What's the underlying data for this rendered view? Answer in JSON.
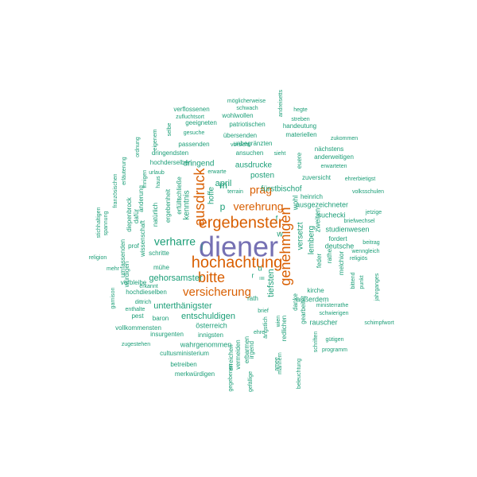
{
  "colors": {
    "teal": "#1b9e77",
    "orange": "#d95f02",
    "purple": "#7570b3"
  },
  "words": [
    {
      "text": "diener",
      "color": "#7570b3"
    },
    {
      "text": "hochachtung",
      "color": "#d95f02"
    },
    {
      "text": "ergebenster",
      "color": "#d95f02"
    },
    {
      "text": "bitte",
      "color": "#d95f02"
    },
    {
      "text": "genehmigen",
      "color": "#d95f02"
    },
    {
      "text": "ausdruck",
      "color": "#d95f02"
    },
    {
      "text": "versicherung",
      "color": "#d95f02"
    },
    {
      "text": "verehrung",
      "color": "#d95f02"
    },
    {
      "text": "prag",
      "color": "#d95f02"
    },
    {
      "text": "verharre",
      "color": "#1b9e77"
    },
    {
      "text": "gehorsamster",
      "color": "#1b9e77"
    },
    {
      "text": "unterthänigster",
      "color": "#1b9e77"
    },
    {
      "text": "entschuldigen",
      "color": "#1b9e77"
    },
    {
      "text": "tiefsten",
      "color": "#1b9e77"
    },
    {
      "text": "april",
      "color": "#1b9e77"
    },
    {
      "text": "dringend",
      "color": "#1b9e77"
    },
    {
      "text": "ausdrucke",
      "color": "#1b9e77"
    },
    {
      "text": "posten",
      "color": "#1b9e77"
    },
    {
      "text": "fürstbischof",
      "color": "#1b9e77"
    },
    {
      "text": "kenntnis",
      "color": "#1b9e77"
    },
    {
      "text": "hoffe",
      "color": "#1b9e77"
    },
    {
      "text": "versetzt",
      "color": "#1b9e77"
    },
    {
      "text": "lemberg",
      "color": "#1b9e77"
    },
    {
      "text": "ausgezeichneter",
      "color": "#1b9e77"
    },
    {
      "text": "suchecki",
      "color": "#1b9e77"
    },
    {
      "text": "studienwesen",
      "color": "#1b9e77"
    },
    {
      "text": "deutsche",
      "color": "#1b9e77"
    },
    {
      "text": "fordert",
      "color": "#1b9e77"
    },
    {
      "text": "rathe",
      "color": "#1b9e77"
    },
    {
      "text": "feder",
      "color": "#1b9e77"
    },
    {
      "text": "melchior",
      "color": "#1b9e77"
    },
    {
      "text": "kirche",
      "color": "#1b9e77"
    },
    {
      "text": "außerdem",
      "color": "#1b9e77"
    },
    {
      "text": "rauscher",
      "color": "#1b9e77"
    },
    {
      "text": "österreich",
      "color": "#1b9e77"
    },
    {
      "text": "innigsten",
      "color": "#1b9e77"
    },
    {
      "text": "wahrgenommen",
      "color": "#1b9e77"
    },
    {
      "text": "cultusministerium",
      "color": "#1b9e77"
    },
    {
      "text": "betreiben",
      "color": "#1b9e77"
    },
    {
      "text": "merkwürdigen",
      "color": "#1b9e77"
    },
    {
      "text": "insurgenten",
      "color": "#1b9e77"
    },
    {
      "text": "vollkommensten",
      "color": "#1b9e77"
    },
    {
      "text": "baron",
      "color": "#1b9e77"
    },
    {
      "text": "pest",
      "color": "#1b9e77"
    },
    {
      "text": "zugestehen",
      "color": "#1b9e77"
    },
    {
      "text": "hochdieselben",
      "color": "#1b9e77"
    },
    {
      "text": "erkannt",
      "color": "#1b9e77"
    },
    {
      "text": "dittrich",
      "color": "#1b9e77"
    },
    {
      "text": "enthalte",
      "color": "#1b9e77"
    },
    {
      "text": "verbleibe",
      "color": "#1b9e77"
    },
    {
      "text": "mühe",
      "color": "#1b9e77"
    },
    {
      "text": "schritte",
      "color": "#1b9e77"
    },
    {
      "text": "prof",
      "color": "#1b9e77"
    },
    {
      "text": "würdigen",
      "color": "#1b9e77"
    },
    {
      "text": "umfassenden",
      "color": "#1b9e77"
    },
    {
      "text": "diepenbrock",
      "color": "#1b9e77"
    },
    {
      "text": "wissenschaft",
      "color": "#1b9e77"
    },
    {
      "text": "dafür",
      "color": "#1b9e77"
    },
    {
      "text": "änderung",
      "color": "#1b9e77"
    },
    {
      "text": "natürlich",
      "color": "#1b9e77"
    },
    {
      "text": "ergebenheit",
      "color": "#1b9e77"
    },
    {
      "text": "erfüllt",
      "color": "#1b9e77"
    },
    {
      "text": "schließe",
      "color": "#1b9e77"
    },
    {
      "text": "hochderselben",
      "color": "#1b9e77"
    },
    {
      "text": "dringendsten",
      "color": "#1b9e77"
    },
    {
      "text": "passenden",
      "color": "#1b9e77"
    },
    {
      "text": "gesuche",
      "color": "#1b9e77"
    },
    {
      "text": "geeigneten",
      "color": "#1b9e77"
    },
    {
      "text": "zufluchtsort",
      "color": "#1b9e77"
    },
    {
      "text": "verflossenen",
      "color": "#1b9e77"
    },
    {
      "text": "möglicherweise",
      "color": "#1b9e77"
    },
    {
      "text": "schwach",
      "color": "#1b9e77"
    },
    {
      "text": "wohlwollen",
      "color": "#1b9e77"
    },
    {
      "text": "patriotischen",
      "color": "#1b9e77"
    },
    {
      "text": "vorsicht",
      "color": "#1b9e77"
    },
    {
      "text": "unbegränzten",
      "color": "#1b9e77"
    },
    {
      "text": "übersenden",
      "color": "#1b9e77"
    },
    {
      "text": "ansuchen",
      "color": "#1b9e77"
    },
    {
      "text": "sieht",
      "color": "#1b9e77"
    },
    {
      "text": "erwarte",
      "color": "#1b9e77"
    },
    {
      "text": "terrain",
      "color": "#1b9e77"
    },
    {
      "text": "urlaub",
      "color": "#1b9e77"
    },
    {
      "text": "haus",
      "color": "#1b9e77"
    },
    {
      "text": "innigen",
      "color": "#1b9e77"
    },
    {
      "text": "eigenem",
      "color": "#1b9e77"
    },
    {
      "text": "ordnung",
      "color": "#1b9e77"
    },
    {
      "text": "selbe",
      "color": "#1b9e77"
    },
    {
      "text": "erläuterung",
      "color": "#1b9e77"
    },
    {
      "text": "französischen",
      "color": "#1b9e77"
    },
    {
      "text": "stichhaltigen",
      "color": "#1b9e77"
    },
    {
      "text": "spannung",
      "color": "#1b9e77"
    },
    {
      "text": "religion",
      "color": "#1b9e77"
    },
    {
      "text": "mehr",
      "color": "#1b9e77"
    },
    {
      "text": "garnison",
      "color": "#1b9e77"
    },
    {
      "text": "andreisetts",
      "color": "#1b9e77"
    },
    {
      "text": "hegte",
      "color": "#1b9e77"
    },
    {
      "text": "streben",
      "color": "#1b9e77"
    },
    {
      "text": "handeutung",
      "color": "#1b9e77"
    },
    {
      "text": "materiellen",
      "color": "#1b9e77"
    },
    {
      "text": "zukommen",
      "color": "#1b9e77"
    },
    {
      "text": "nächstens",
      "color": "#1b9e77"
    },
    {
      "text": "anderweitigen",
      "color": "#1b9e77"
    },
    {
      "text": "erwarteten",
      "color": "#1b9e77"
    },
    {
      "text": "euere",
      "color": "#1b9e77"
    },
    {
      "text": "zuversicht",
      "color": "#1b9e77"
    },
    {
      "text": "ehrerbietigst",
      "color": "#1b9e77"
    },
    {
      "text": "heinrich",
      "color": "#1b9e77"
    },
    {
      "text": "volksschulen",
      "color": "#1b9e77"
    },
    {
      "text": "jetzige",
      "color": "#1b9e77"
    },
    {
      "text": "briefwechsel",
      "color": "#1b9e77"
    },
    {
      "text": "beitrag",
      "color": "#1b9e77"
    },
    {
      "text": "wenngleich",
      "color": "#1b9e77"
    },
    {
      "text": "religiös",
      "color": "#1b9e77"
    },
    {
      "text": "bittend",
      "color": "#1b9e77"
    },
    {
      "text": "punkt",
      "color": "#1b9e77"
    },
    {
      "text": "jahrganges",
      "color": "#1b9e77"
    },
    {
      "text": "ministerrathe",
      "color": "#1b9e77"
    },
    {
      "text": "schwierigen",
      "color": "#1b9e77"
    },
    {
      "text": "gütigen",
      "color": "#1b9e77"
    },
    {
      "text": "schimpfwort",
      "color": "#1b9e77"
    },
    {
      "text": "programm",
      "color": "#1b9e77"
    },
    {
      "text": "zweiten",
      "color": "#1b9e77"
    },
    {
      "text": "wohl",
      "color": "#1b9e77"
    },
    {
      "text": "gearbeitet",
      "color": "#1b9e77"
    },
    {
      "text": "redlichen",
      "color": "#1b9e77"
    },
    {
      "text": "danke",
      "color": "#1b9e77"
    },
    {
      "text": "männern",
      "color": "#1b9e77"
    },
    {
      "text": "beleuchtung",
      "color": "#1b9e77"
    },
    {
      "text": "schriften",
      "color": "#1b9e77"
    },
    {
      "text": "amee",
      "color": "#1b9e77"
    },
    {
      "text": "wien",
      "color": "#1b9e77"
    },
    {
      "text": "brief",
      "color": "#1b9e77"
    },
    {
      "text": "ehre",
      "color": "#1b9e77"
    },
    {
      "text": "ängstlich",
      "color": "#1b9e77"
    },
    {
      "text": "irgend",
      "color": "#1b9e77"
    },
    {
      "text": "rath",
      "color": "#1b9e77"
    },
    {
      "text": "erbarmen",
      "color": "#1b9e77"
    },
    {
      "text": "gefällige",
      "color": "#1b9e77"
    },
    {
      "text": "vermeiden",
      "color": "#1b9e77"
    },
    {
      "text": "erreichen",
      "color": "#1b9e77"
    },
    {
      "text": "gegebenen",
      "color": "#1b9e77"
    },
    {
      "text": "f",
      "color": "#1b9e77"
    },
    {
      "text": "u",
      "color": "#1b9e77"
    },
    {
      "text": "w",
      "color": "#1b9e77"
    },
    {
      "text": "ii",
      "color": "#1b9e77"
    },
    {
      "text": "r",
      "color": "#1b9e77"
    },
    {
      "text": "m",
      "color": "#1b9e77"
    },
    {
      "text": "p",
      "color": "#1b9e77"
    },
    {
      "text": "j",
      "color": "#1b9e77"
    }
  ]
}
